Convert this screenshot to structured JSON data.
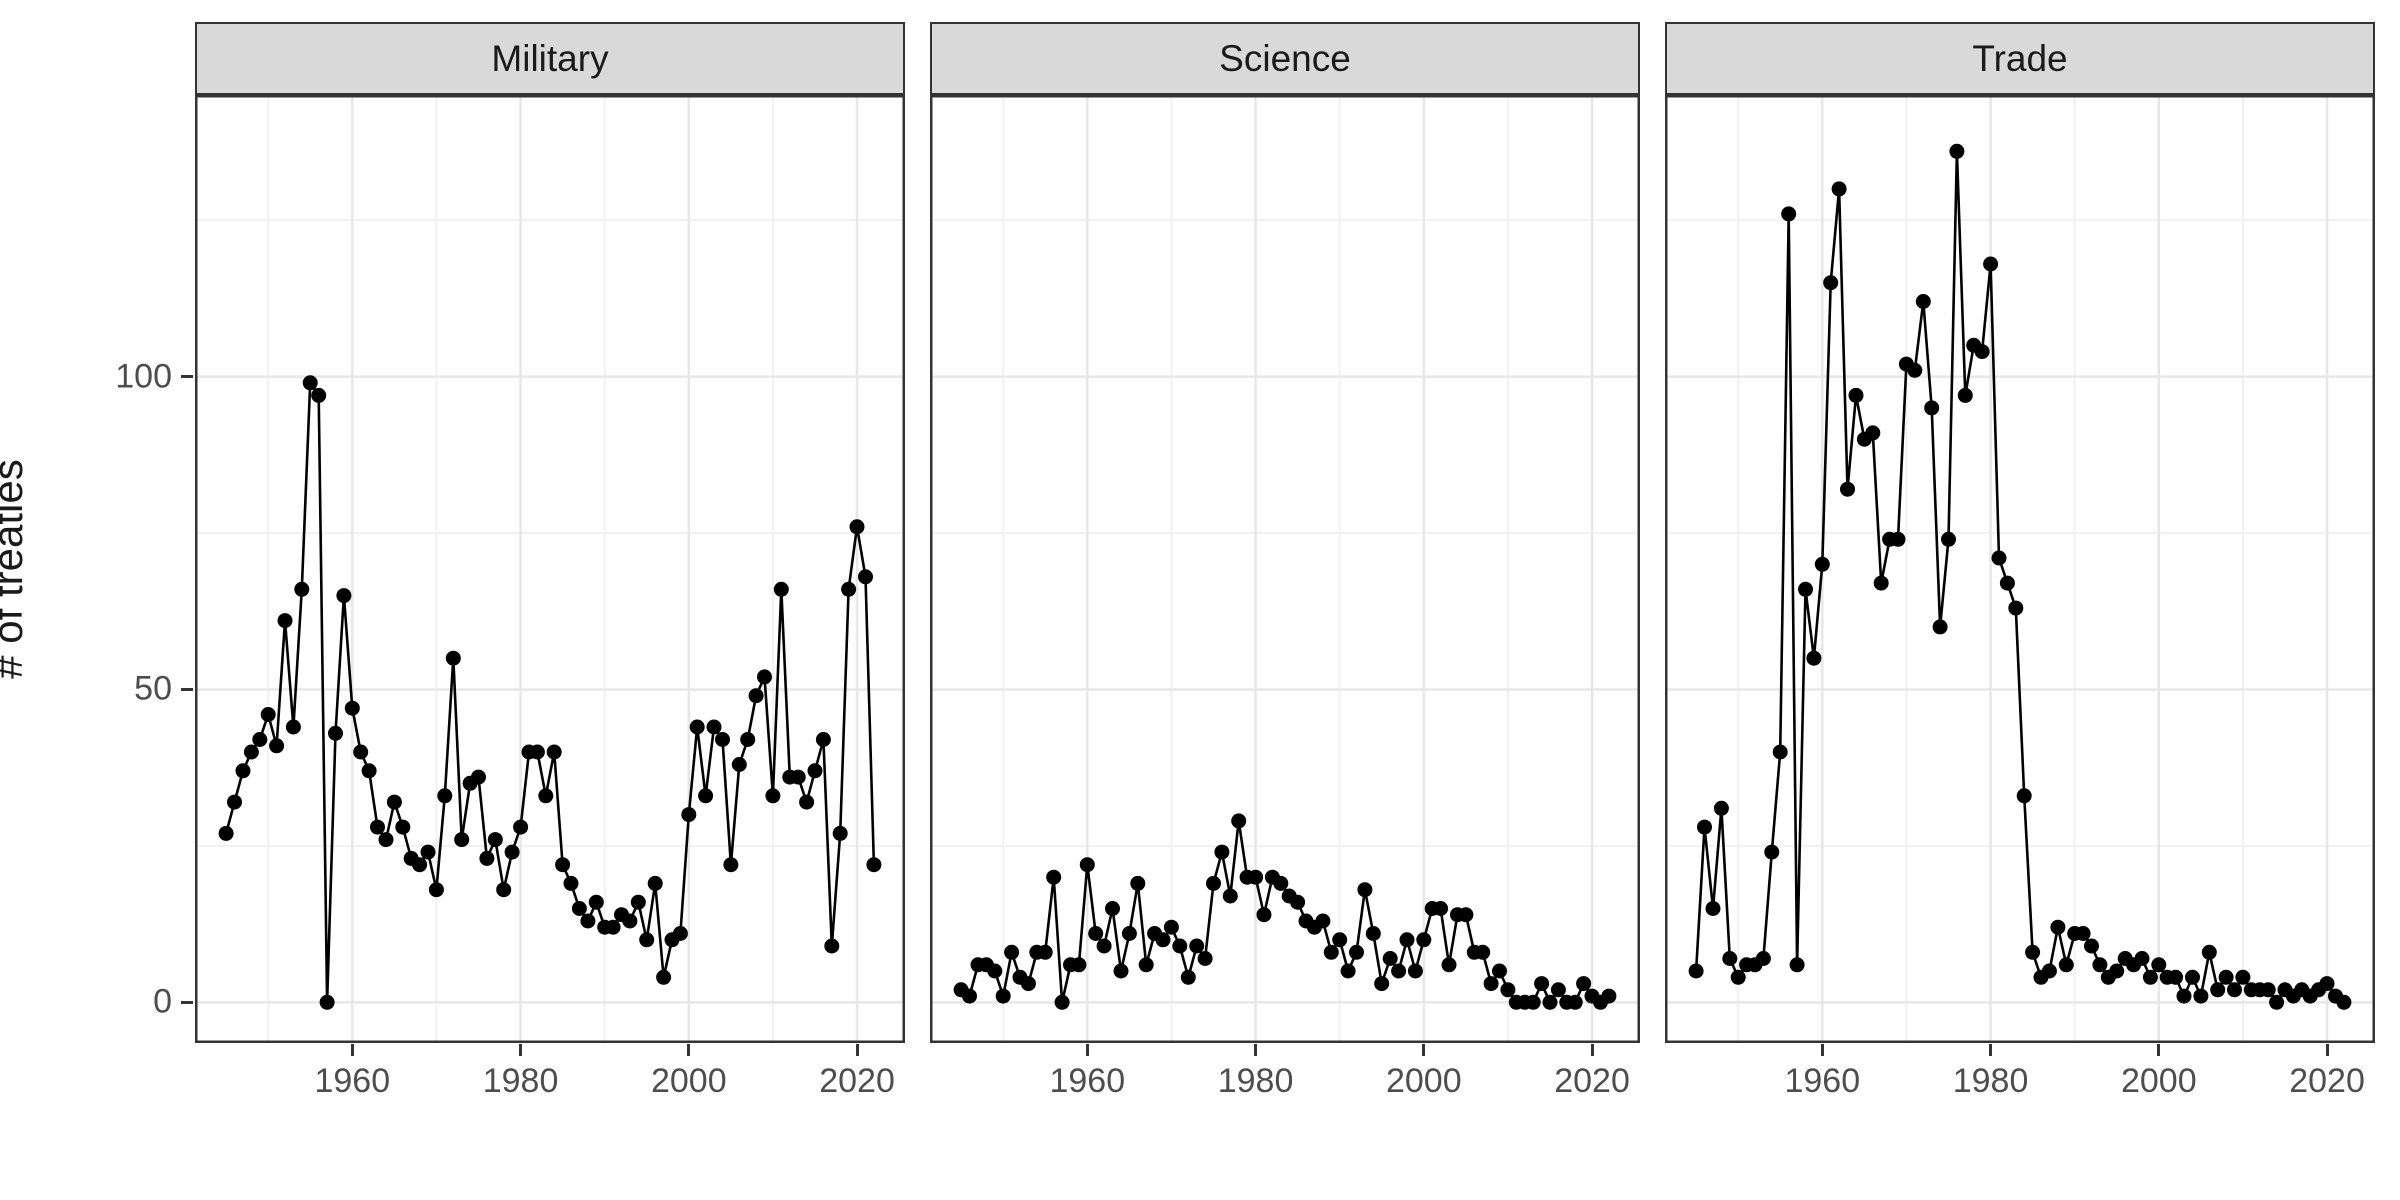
{
  "figure": {
    "kind": "faceted-scatter-line-chart",
    "background_color": "#ffffff"
  },
  "axes": {
    "y": {
      "label": "# of treaties",
      "tick_labels": [
        "0",
        "50",
        "100"
      ],
      "major_ticks": [
        0,
        50,
        100
      ],
      "minor_gridlines": [
        25,
        75,
        125
      ],
      "range": [
        -6.5,
        145
      ]
    },
    "x": {
      "tick_labels": [
        "1960",
        "1980",
        "2000",
        "2020"
      ],
      "major_ticks": [
        1960,
        1980,
        2000,
        2020
      ],
      "minor_gridlines": [
        1950,
        1970,
        1990,
        2010
      ],
      "range": [
        1941.3,
        2025.7
      ]
    }
  },
  "style": {
    "point_color": "#000000",
    "line_color": "#000000",
    "strip_fill": "#d9d9d9",
    "strip_border": "#333333",
    "panel_border": "#333333",
    "grid_major_color": "#e7e7e7",
    "grid_minor_color": "#f1f1f1",
    "tick_label_color": "#4d4d4d",
    "point_radius": 7.5,
    "line_width": 2.6
  },
  "chart_data": {
    "type": "line",
    "title": "",
    "ylabel": "# of treaties",
    "xlabel": "",
    "legend": "none",
    "grid": "on",
    "ylim": [
      -6.5,
      145
    ],
    "years": [
      1945,
      1946,
      1947,
      1948,
      1949,
      1950,
      1951,
      1952,
      1953,
      1954,
      1955,
      1956,
      1957,
      1958,
      1959,
      1960,
      1961,
      1962,
      1963,
      1964,
      1965,
      1966,
      1967,
      1968,
      1969,
      1970,
      1971,
      1972,
      1973,
      1974,
      1975,
      1976,
      1977,
      1978,
      1979,
      1980,
      1981,
      1982,
      1983,
      1984,
      1985,
      1986,
      1987,
      1988,
      1989,
      1990,
      1991,
      1992,
      1993,
      1994,
      1995,
      1996,
      1997,
      1998,
      1999,
      2000,
      2001,
      2002,
      2003,
      2004,
      2005,
      2006,
      2007,
      2008,
      2009,
      2010,
      2011,
      2012,
      2013,
      2014,
      2015,
      2016,
      2017,
      2018,
      2019,
      2020,
      2021,
      2022
    ],
    "facets": [
      {
        "label": "Military",
        "values": [
          27,
          32,
          37,
          40,
          42,
          46,
          41,
          61,
          44,
          66,
          99,
          97,
          0,
          43,
          65,
          47,
          40,
          37,
          28,
          26,
          32,
          28,
          23,
          22,
          24,
          18,
          33,
          55,
          26,
          35,
          36,
          23,
          26,
          18,
          24,
          28,
          40,
          40,
          33,
          40,
          22,
          19,
          15,
          13,
          16,
          12,
          12,
          14,
          13,
          16,
          10,
          19,
          4,
          10,
          11,
          30,
          44,
          33,
          44,
          42,
          22,
          38,
          42,
          49,
          52,
          33,
          66,
          36,
          36,
          32,
          37,
          42,
          9,
          27,
          66,
          76,
          68,
          22
        ]
      },
      {
        "label": "Science",
        "values": [
          2,
          1,
          6,
          6,
          5,
          1,
          8,
          4,
          3,
          8,
          8,
          20,
          0,
          6,
          6,
          22,
          11,
          9,
          15,
          5,
          11,
          19,
          6,
          11,
          10,
          12,
          9,
          4,
          9,
          7,
          19,
          24,
          17,
          29,
          20,
          20,
          14,
          20,
          19,
          17,
          16,
          13,
          12,
          13,
          8,
          10,
          5,
          8,
          18,
          11,
          3,
          7,
          5,
          10,
          5,
          10,
          15,
          15,
          6,
          14,
          14,
          8,
          8,
          3,
          5,
          2,
          0,
          0,
          0,
          3,
          0,
          2,
          0,
          0,
          3,
          1,
          0,
          1
        ]
      },
      {
        "label": "Trade",
        "values": [
          5,
          28,
          15,
          31,
          7,
          4,
          6,
          6,
          7,
          24,
          40,
          126,
          6,
          66,
          55,
          70,
          115,
          130,
          82,
          97,
          90,
          91,
          67,
          74,
          74,
          102,
          101,
          112,
          95,
          60,
          74,
          136,
          97,
          105,
          104,
          118,
          71,
          67,
          63,
          33,
          8,
          4,
          5,
          12,
          6,
          11,
          11,
          9,
          6,
          4,
          5,
          7,
          6,
          7,
          4,
          6,
          4,
          4,
          1,
          4,
          1,
          8,
          2,
          4,
          2,
          4,
          2,
          2,
          2,
          0,
          2,
          1,
          2,
          1,
          2,
          3,
          1,
          0
        ]
      }
    ]
  }
}
